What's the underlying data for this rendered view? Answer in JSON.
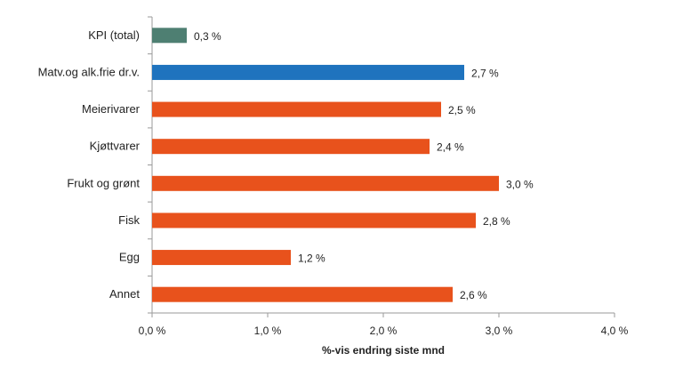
{
  "chart_data": {
    "type": "bar",
    "orientation": "horizontal",
    "categories": [
      "KPI (total)",
      "Matv.og alk.frie dr.v.",
      "Meierivarer",
      "Kjøttvarer",
      "Frukt og grønt",
      "Fisk",
      "Egg",
      "Annet"
    ],
    "values": [
      0.3,
      2.7,
      2.5,
      2.4,
      3.0,
      2.8,
      1.2,
      2.6
    ],
    "value_labels": [
      "0,3 %",
      "2,7 %",
      "2,5 %",
      "2,4 %",
      "3,0 %",
      "2,8 %",
      "1,2 %",
      "2,6 %"
    ],
    "bar_colors": [
      "#4e7f72",
      "#1f73be",
      "#e8521c",
      "#e8521c",
      "#e8521c",
      "#e8521c",
      "#e8521c",
      "#e8521c"
    ],
    "xlim": [
      0,
      4
    ],
    "xticks": [
      0,
      1,
      2,
      3,
      4
    ],
    "xtick_labels": [
      "0,0 %",
      "1,0 %",
      "2,0 %",
      "3,0 %",
      "4,0 %"
    ],
    "xlabel": "%-vis endring siste mnd",
    "ylabel": "",
    "title": "",
    "grid": false,
    "legend": "none"
  }
}
